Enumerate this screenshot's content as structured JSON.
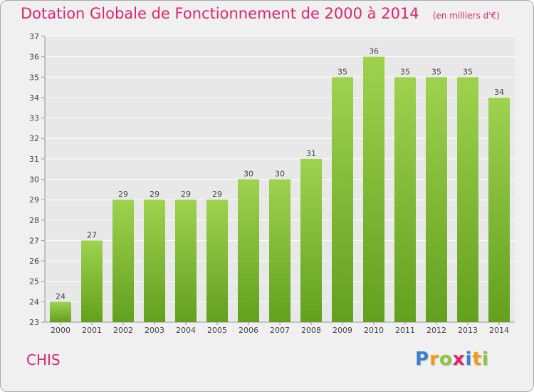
{
  "title": "Dotation Globale de Fonctionnement de 2000 à 2014",
  "subtitle": "(en milliers d'€)",
  "commune": "CHIS",
  "logo": {
    "letters": [
      "P",
      "r",
      "o",
      "x",
      "i",
      "t",
      "i"
    ],
    "colors": [
      "#3a7fd0",
      "#f39c12",
      "#8cc63f",
      "#e0256a",
      "#3a7fd0",
      "#f39c12",
      "#8cc63f"
    ]
  },
  "colors": {
    "bar_top": "#9ed24f",
    "bar_bottom": "#62a01e",
    "title": "#e0256a",
    "grid": "#ffffff",
    "plot_background": "#e8e8e8"
  },
  "chart_data": {
    "type": "bar",
    "categories": [
      "2000",
      "2001",
      "2002",
      "2003",
      "2004",
      "2005",
      "2006",
      "2007",
      "2008",
      "2009",
      "2010",
      "2011",
      "2012",
      "2013",
      "2014"
    ],
    "values": [
      24,
      27,
      29,
      29,
      29,
      29,
      30,
      30,
      31,
      35,
      36,
      35,
      35,
      35,
      34
    ],
    "ylim": [
      23,
      37
    ],
    "yticks": [
      23,
      24,
      25,
      26,
      27,
      28,
      29,
      30,
      31,
      32,
      33,
      34,
      35,
      36,
      37
    ],
    "grid": true,
    "data_labels": true
  }
}
